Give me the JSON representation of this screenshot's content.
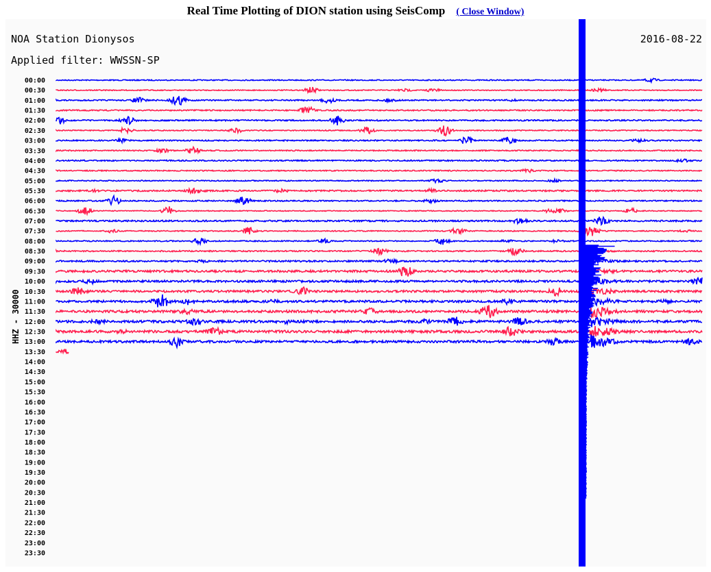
{
  "page": {
    "title": "Real Time Plotting of DION station using SeisComp",
    "close_label": "( Close Window)"
  },
  "plot": {
    "station": "NOA Station Dionysos",
    "filter": "Applied filter: WWSSN-SP",
    "date": "2016-08-22",
    "channel": "HHZ - 30000"
  },
  "chart_data": {
    "type": "line",
    "title": "NOA Station Dionysos",
    "row_labels": [
      "00:00",
      "00:30",
      "01:00",
      "01:30",
      "02:00",
      "02:30",
      "03:00",
      "03:30",
      "04:00",
      "04:30",
      "05:00",
      "05:30",
      "06:00",
      "06:30",
      "07:00",
      "07:30",
      "08:00",
      "08:30",
      "09:00",
      "09:30",
      "10:00",
      "10:30",
      "11:00",
      "11:30",
      "12:00",
      "12:30",
      "13:00",
      "13:30",
      "14:00",
      "14:30",
      "15:00",
      "15:30",
      "16:00",
      "16:30",
      "17:00",
      "17:30",
      "18:00",
      "18:30",
      "19:00",
      "19:30",
      "20:00",
      "20:30",
      "21:00",
      "21:30",
      "22:00",
      "22:30",
      "23:00",
      "23:30"
    ],
    "rows_with_data": 28,
    "last_row_fraction": 0.02,
    "colors": {
      "even_rows": "#0000ff",
      "odd_rows": "#ff1f4f"
    }
  }
}
